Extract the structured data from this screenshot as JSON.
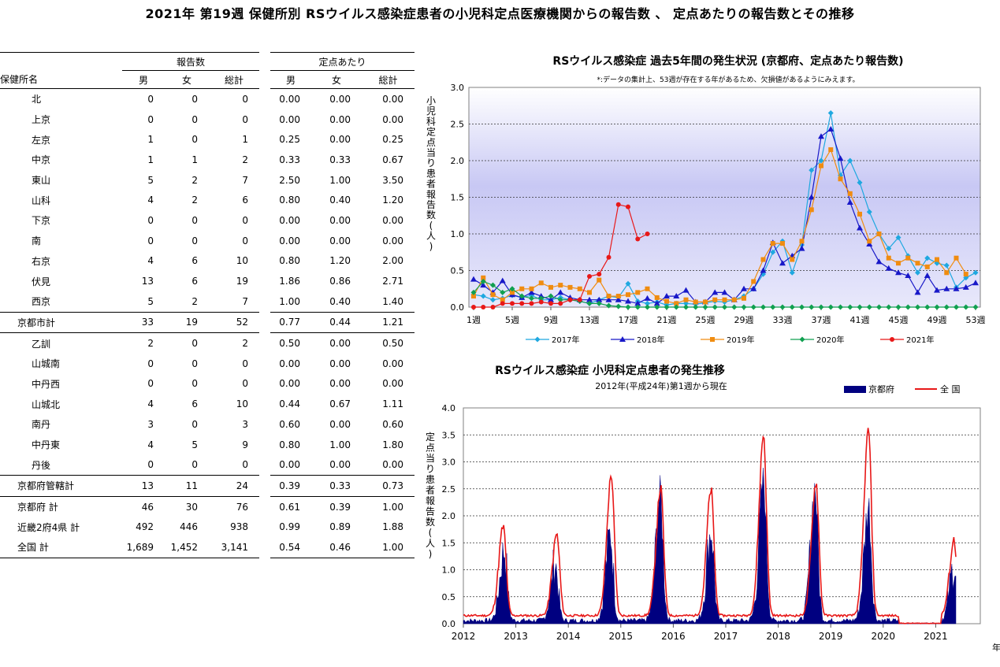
{
  "title": "2021年 第19週 保健所別 RSウイルス感染症患者の小児科定点医療機関からの報告数 、 定点あたりの報告数とその推移",
  "table": {
    "group_headers": [
      "報告数",
      "定点あたり"
    ],
    "col_headers": [
      "保健所名",
      "男",
      "女",
      "総計",
      "男",
      "女",
      "総計"
    ],
    "rows": [
      {
        "name": "北",
        "kind": "sub",
        "cells": [
          "0",
          "0",
          "0",
          "0.00",
          "0.00",
          "0.00"
        ]
      },
      {
        "name": "上京",
        "kind": "sub",
        "cells": [
          "0",
          "0",
          "0",
          "0.00",
          "0.00",
          "0.00"
        ]
      },
      {
        "name": "左京",
        "kind": "sub",
        "cells": [
          "1",
          "0",
          "1",
          "0.25",
          "0.00",
          "0.25"
        ]
      },
      {
        "name": "中京",
        "kind": "sub",
        "cells": [
          "1",
          "1",
          "2",
          "0.33",
          "0.33",
          "0.67"
        ]
      },
      {
        "name": "東山",
        "kind": "sub",
        "cells": [
          "5",
          "2",
          "7",
          "2.50",
          "1.00",
          "3.50"
        ]
      },
      {
        "name": "山科",
        "kind": "sub",
        "cells": [
          "4",
          "2",
          "6",
          "0.80",
          "0.40",
          "1.20"
        ]
      },
      {
        "name": "下京",
        "kind": "sub",
        "cells": [
          "0",
          "0",
          "0",
          "0.00",
          "0.00",
          "0.00"
        ]
      },
      {
        "name": "南",
        "kind": "sub",
        "cells": [
          "0",
          "0",
          "0",
          "0.00",
          "0.00",
          "0.00"
        ]
      },
      {
        "name": "右京",
        "kind": "sub",
        "cells": [
          "4",
          "6",
          "10",
          "0.80",
          "1.20",
          "2.00"
        ]
      },
      {
        "name": "伏見",
        "kind": "sub",
        "cells": [
          "13",
          "6",
          "19",
          "1.86",
          "0.86",
          "2.71"
        ]
      },
      {
        "name": "西京",
        "kind": "sub",
        "cells": [
          "5",
          "2",
          "7",
          "1.00",
          "0.40",
          "1.40"
        ]
      },
      {
        "name": "京都市計",
        "kind": "total",
        "sep": true,
        "cells": [
          "33",
          "19",
          "52",
          "0.77",
          "0.44",
          "1.21"
        ]
      },
      {
        "name": "乙訓",
        "kind": "sub",
        "sep": true,
        "cells": [
          "2",
          "0",
          "2",
          "0.50",
          "0.00",
          "0.50"
        ]
      },
      {
        "name": "山城南",
        "kind": "sub",
        "cells": [
          "0",
          "0",
          "0",
          "0.00",
          "0.00",
          "0.00"
        ]
      },
      {
        "name": "中丹西",
        "kind": "sub",
        "cells": [
          "0",
          "0",
          "0",
          "0.00",
          "0.00",
          "0.00"
        ]
      },
      {
        "name": "山城北",
        "kind": "sub",
        "cells": [
          "4",
          "6",
          "10",
          "0.44",
          "0.67",
          "1.11"
        ]
      },
      {
        "name": "南丹",
        "kind": "sub",
        "cells": [
          "3",
          "0",
          "3",
          "0.60",
          "0.00",
          "0.60"
        ]
      },
      {
        "name": "中丹東",
        "kind": "sub",
        "cells": [
          "4",
          "5",
          "9",
          "0.80",
          "1.00",
          "1.80"
        ]
      },
      {
        "name": "丹後",
        "kind": "sub",
        "cells": [
          "0",
          "0",
          "0",
          "0.00",
          "0.00",
          "0.00"
        ]
      },
      {
        "name": "京都府管轄計",
        "kind": "total",
        "sep": true,
        "cells": [
          "13",
          "11",
          "24",
          "0.39",
          "0.33",
          "0.73"
        ]
      },
      {
        "name": "京都府 計",
        "kind": "total",
        "sep": true,
        "cells": [
          "46",
          "30",
          "76",
          "0.61",
          "0.39",
          "1.00"
        ]
      },
      {
        "name": "近畿2府4県 計",
        "kind": "total",
        "cells": [
          "492",
          "446",
          "938",
          "0.99",
          "0.89",
          "1.88"
        ]
      },
      {
        "name": "全国 計",
        "kind": "total",
        "last": true,
        "cells": [
          "1,689",
          "1,452",
          "3,141",
          "0.54",
          "0.46",
          "1.00"
        ]
      }
    ]
  },
  "chart_data": [
    {
      "type": "line",
      "title": "RSウイルス感染症 過去5年間の発生状況 (京都府、定点あたり報告数)",
      "note": "*:データの集計上、53週が存在する年があるため、欠損値があるようにみえます。",
      "ylabel": "小児科定点当り患者報告数(人)",
      "ylim": [
        0,
        3.0
      ],
      "yticks": [
        "0.0",
        "0.5",
        "1.0",
        "1.5",
        "2.0",
        "2.5",
        "3.0"
      ],
      "xticks": [
        "1週",
        "5週",
        "9週",
        "13週",
        "17週",
        "21週",
        "25週",
        "29週",
        "33週",
        "37週",
        "41週",
        "45週",
        "49週",
        "53週"
      ],
      "grid": true,
      "legend_position": "bottom",
      "series": [
        {
          "name": "2017年",
          "color": "#1fa8e0",
          "marker": "diamond",
          "values": [
            0.17,
            0.15,
            0.1,
            0.12,
            0.16,
            0.13,
            0.16,
            0.1,
            0.1,
            0.13,
            0.1,
            0.08,
            0.05,
            0.1,
            0.15,
            0.13,
            0.32,
            0.08,
            0.05,
            0.07,
            0.03,
            0.05,
            0.05,
            0.04,
            0.06,
            0.08,
            0.07,
            0.1,
            0.15,
            0.25,
            0.45,
            0.75,
            0.9,
            0.47,
            0.85,
            1.87,
            2.0,
            2.65,
            1.8,
            2.0,
            1.7,
            1.3,
            1.0,
            0.8,
            0.95,
            0.7,
            0.47,
            0.67,
            0.6,
            0.57,
            0.27,
            0.4,
            0.47
          ]
        },
        {
          "name": "2018年",
          "color": "#1818c8",
          "marker": "triangle",
          "values": [
            0.38,
            0.3,
            0.2,
            0.36,
            0.17,
            0.13,
            0.2,
            0.15,
            0.1,
            0.2,
            0.13,
            0.1,
            0.1,
            0.1,
            0.1,
            0.1,
            0.08,
            0.05,
            0.12,
            0.05,
            0.15,
            0.15,
            0.23,
            0.07,
            0.07,
            0.2,
            0.2,
            0.1,
            0.25,
            0.25,
            0.5,
            0.88,
            0.6,
            0.7,
            0.8,
            1.5,
            2.33,
            2.43,
            2.03,
            1.43,
            1.08,
            0.86,
            0.62,
            0.53,
            0.47,
            0.43,
            0.2,
            0.43,
            0.23,
            0.25,
            0.25,
            0.27,
            0.33
          ]
        },
        {
          "name": "2019年",
          "color": "#f08c10",
          "marker": "square",
          "values": [
            0.15,
            0.4,
            0.17,
            0.1,
            0.2,
            0.25,
            0.25,
            0.33,
            0.27,
            0.3,
            0.27,
            0.25,
            0.2,
            0.37,
            0.15,
            0.15,
            0.17,
            0.2,
            0.25,
            0.13,
            0.08,
            0.05,
            0.1,
            0.07,
            0.07,
            0.1,
            0.1,
            0.1,
            0.12,
            0.35,
            0.65,
            0.87,
            0.87,
            0.65,
            0.9,
            1.33,
            1.93,
            2.15,
            1.75,
            1.55,
            1.27,
            0.9,
            1.0,
            0.67,
            0.6,
            0.67,
            0.6,
            0.55,
            0.65,
            0.47,
            0.67,
            0.45
          ]
        },
        {
          "name": "2020年",
          "color": "#10a050",
          "marker": "diamond",
          "values": [
            0.2,
            0.35,
            0.3,
            0.2,
            0.25,
            0.15,
            0.12,
            0.12,
            0.15,
            0.1,
            0.1,
            0.08,
            0.05,
            0.05,
            0.02,
            0.01,
            0,
            0,
            0,
            0,
            0,
            0,
            0,
            0,
            0,
            0,
            0,
            0,
            0,
            0,
            0,
            0,
            0,
            0,
            0,
            0,
            0,
            0,
            0,
            0,
            0,
            0,
            0,
            0,
            0,
            0,
            0,
            0,
            0,
            0,
            0,
            0,
            0
          ]
        },
        {
          "name": "2021年",
          "color": "#e81818",
          "marker": "circle",
          "values": [
            0,
            0,
            0,
            0.05,
            0.05,
            0.05,
            0.05,
            0.07,
            0.05,
            0.05,
            0.1,
            0.1,
            0.42,
            0.45,
            0.68,
            1.4,
            1.37,
            0.93,
            1.0
          ]
        }
      ]
    },
    {
      "type": "area",
      "title": "RSウイルス感染症 小児科定点患者の発生推移",
      "subtitle": "2012年(平成24年)第1週から現在",
      "ylabel": "定点当り患者報告数(人)",
      "ylim": [
        0,
        4.0
      ],
      "yticks": [
        "0.0",
        "0.5",
        "1.0",
        "1.5",
        "2.0",
        "2.5",
        "3.0",
        "3.5",
        "4.0"
      ],
      "xticks": [
        "2012",
        "2013",
        "2014",
        "2015",
        "2016",
        "2017",
        "2018",
        "2019",
        "2020",
        "2021"
      ],
      "x_unit": "年",
      "grid": true,
      "legend_position": "top-right",
      "series": [
        {
          "name": "京都府",
          "type": "area",
          "color": "#000080",
          "peaks": [
            {
              "x": 2012.78,
              "y": 1.3
            },
            {
              "x": 2013.75,
              "y": 1.05
            },
            {
              "x": 2014.8,
              "y": 1.6
            },
            {
              "x": 2015.75,
              "y": 2.3
            },
            {
              "x": 2016.72,
              "y": 1.65
            },
            {
              "x": 2017.72,
              "y": 2.55
            },
            {
              "x": 2018.7,
              "y": 2.45
            },
            {
              "x": 2019.72,
              "y": 2.1
            },
            {
              "x": 2021.35,
              "y": 1.0
            }
          ]
        },
        {
          "name": "全 国",
          "type": "line",
          "color": "#e81818",
          "peaks": [
            {
              "x": 2012.76,
              "y": 1.65
            },
            {
              "x": 2013.78,
              "y": 1.5
            },
            {
              "x": 2014.82,
              "y": 2.6
            },
            {
              "x": 2015.76,
              "y": 2.37
            },
            {
              "x": 2016.72,
              "y": 2.33
            },
            {
              "x": 2017.72,
              "y": 3.35
            },
            {
              "x": 2018.72,
              "y": 2.47
            },
            {
              "x": 2019.72,
              "y": 3.45
            },
            {
              "x": 2021.35,
              "y": 1.4
            }
          ]
        }
      ]
    }
  ]
}
